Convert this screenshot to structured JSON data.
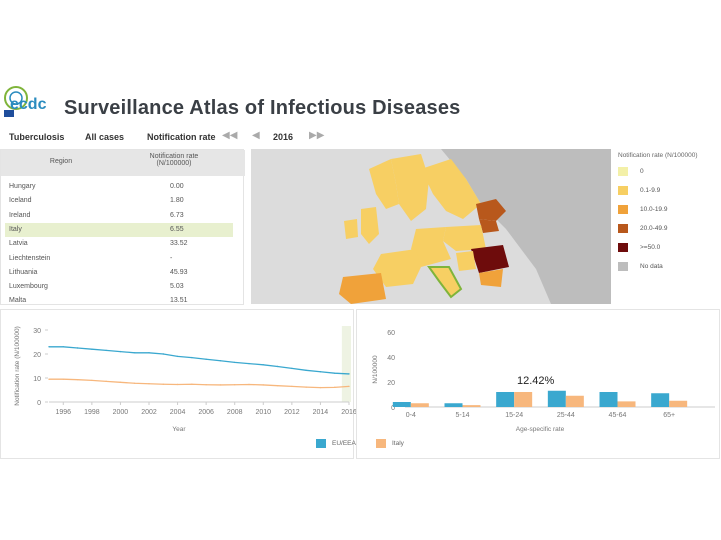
{
  "header": {
    "logo_text": "ecdc",
    "title": "Surveillance Atlas of Infectious Diseases"
  },
  "toolbar": {
    "disease": "Tuberculosis",
    "population": "All cases",
    "indicator": "Notification rate",
    "year": "2016",
    "nav_first": "◀◀",
    "nav_prev": "◀",
    "nav_next": "▶▶"
  },
  "table": {
    "col_region": "Region",
    "col_rate_line1": "Notification rate",
    "col_rate_line2": "(N/100000)",
    "rows": [
      {
        "region": "Hungary",
        "value": "0.00"
      },
      {
        "region": "Iceland",
        "value": "1.80"
      },
      {
        "region": "Ireland",
        "value": "6.73"
      },
      {
        "region": "Italy",
        "value": "6.55"
      },
      {
        "region": "Latvia",
        "value": "33.52"
      },
      {
        "region": "Liechtenstein",
        "value": "-"
      },
      {
        "region": "Lithuania",
        "value": "45.93"
      },
      {
        "region": "Luxembourg",
        "value": "5.03"
      },
      {
        "region": "Malta",
        "value": "13.51"
      }
    ],
    "selected_index": 3
  },
  "legend": {
    "title": "Notification rate (N/100000)",
    "items": [
      {
        "label": "0",
        "color": "#f3f0a8"
      },
      {
        "label": "0.1-9.9",
        "color": "#f7cf63"
      },
      {
        "label": "10.0-19.9",
        "color": "#f0a23a"
      },
      {
        "label": "20.0-49.9",
        "color": "#b8581c"
      },
      {
        "label": ">=50.0",
        "color": "#6e0c0c"
      },
      {
        "label": "No data",
        "color": "#bdbdbd"
      }
    ]
  },
  "bottom_legend": {
    "items": [
      {
        "label": "EU/EEA",
        "color": "#3aa8cf"
      },
      {
        "label": "Italy",
        "color": "#f7b77d"
      }
    ]
  },
  "chart_data": [
    {
      "type": "line",
      "ylabel": "Notification rate (N/100000)",
      "xlabel": "Year",
      "ylim": [
        0,
        30
      ],
      "yticks": [
        0,
        10,
        20,
        30
      ],
      "x": [
        1995,
        1996,
        1997,
        1998,
        1999,
        2000,
        2001,
        2002,
        2003,
        2004,
        2005,
        2006,
        2007,
        2008,
        2009,
        2010,
        2011,
        2012,
        2013,
        2014,
        2015,
        2016
      ],
      "xticks": [
        1996,
        1998,
        2000,
        2002,
        2004,
        2006,
        2008,
        2010,
        2012,
        2014,
        2016
      ],
      "xtick_labels": [
        "1996",
        "1998",
        "2000",
        "2002",
        "2004",
        "2006",
        "2008",
        "2010",
        "2012",
        "2014",
        "2016"
      ],
      "series": [
        {
          "name": "EU/EEA",
          "color": "#3aa8cf",
          "values": [
            23,
            23,
            22.5,
            22,
            21.5,
            21,
            20.5,
            20.5,
            20,
            19,
            18.5,
            17.8,
            17.2,
            16.5,
            16,
            15.5,
            14.8,
            14,
            13.2,
            12.6,
            12,
            11.7
          ]
        },
        {
          "name": "Italy",
          "color": "#f7b77d",
          "values": [
            9.5,
            9.5,
            9.3,
            9,
            8.6,
            8.2,
            7.8,
            7.6,
            7.4,
            7.3,
            7.4,
            7.2,
            7.1,
            7.2,
            7.3,
            7.1,
            6.8,
            6.5,
            6.2,
            6,
            6.1,
            6.5
          ]
        }
      ]
    },
    {
      "type": "bar",
      "ylabel": "N/100000",
      "xlabel": "Age-specific rate",
      "ylim": [
        0,
        60
      ],
      "yticks": [
        0,
        20,
        40,
        60
      ],
      "categories": [
        "0-4",
        "5-14",
        "15-24",
        "25-44",
        "45-64",
        "65+"
      ],
      "series": [
        {
          "name": "EU/EEA",
          "color": "#3aa8cf",
          "values": [
            4,
            3,
            12,
            13,
            12,
            11
          ]
        },
        {
          "name": "Italy",
          "color": "#f7b77d",
          "values": [
            3,
            1.5,
            12,
            9,
            4.5,
            5
          ]
        }
      ],
      "annotation": "12.42%"
    }
  ]
}
